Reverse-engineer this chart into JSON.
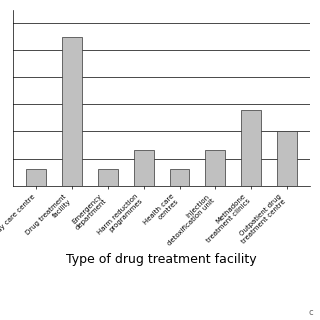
{
  "categories": [
    "Day care centre",
    "Drug treatment\nfacility",
    "Emergency\ndepartment",
    "Harm reduction\nprogrammes",
    "Health care\ncentres",
    "Injection\ndetoxification unit",
    "Methadone\ntreatment clinics",
    "Outpatient drug\ntreatment centre"
  ],
  "values": [
    6,
    55,
    6,
    13,
    6,
    13,
    28,
    20
  ],
  "bar_color": "#c0c0c0",
  "bar_edge_color": "#333333",
  "xlabel": "Type of drug treatment facility",
  "ylim": [
    0,
    65
  ],
  "yticks": [
    0,
    10,
    20,
    30,
    40,
    50,
    60
  ],
  "background_color": "#ffffff",
  "grid_color": "#000000",
  "xlabel_fontsize": 9,
  "tick_fontsize": 5,
  "ytick_fontsize": 6,
  "bar_width": 0.55
}
